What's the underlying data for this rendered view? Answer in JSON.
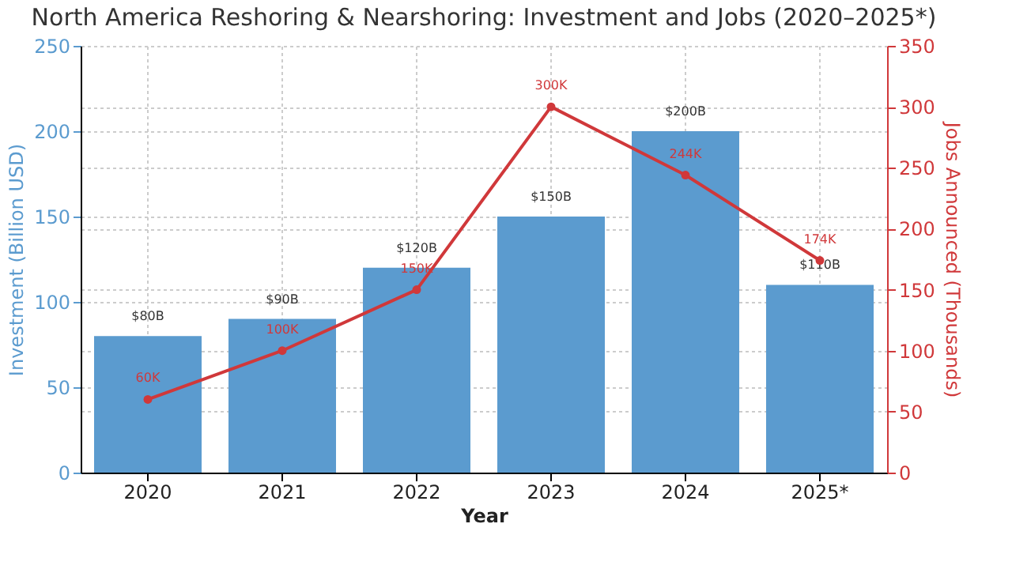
{
  "chart_data": {
    "type": "bar",
    "title": "North America Reshoring & Nearshoring: Investment and Jobs (2020–2025*)",
    "xlabel": "Year",
    "ylabel": "Investment (Billion USD)",
    "y2label": "Jobs Announced (Thousands)",
    "categories": [
      "2020",
      "2021",
      "2022",
      "2023",
      "2024",
      "2025*"
    ],
    "series": [
      {
        "color": "#5b9bcf",
        "values": [
          80,
          90,
          120,
          150,
          200,
          110
        ],
        "value_labels": [
          "$80B",
          "$90B",
          "$120B",
          "$150B",
          "$200B",
          "$110B"
        ]
      },
      {
        "type": "line",
        "axis": "y2",
        "color": "#d0383a",
        "values": [
          60,
          100,
          150,
          300,
          244,
          174
        ],
        "value_labels": [
          "60K",
          "100K",
          "150K",
          "300K",
          "244K",
          "174K"
        ]
      }
    ],
    "ylim": [
      0,
      250
    ],
    "yticks": [
      0,
      50,
      100,
      150,
      200,
      250
    ],
    "y2lim": [
      0,
      350
    ],
    "y2ticks": [
      0,
      50,
      100,
      150,
      200,
      250,
      300,
      350
    ],
    "grid": true,
    "marker": "circle"
  }
}
